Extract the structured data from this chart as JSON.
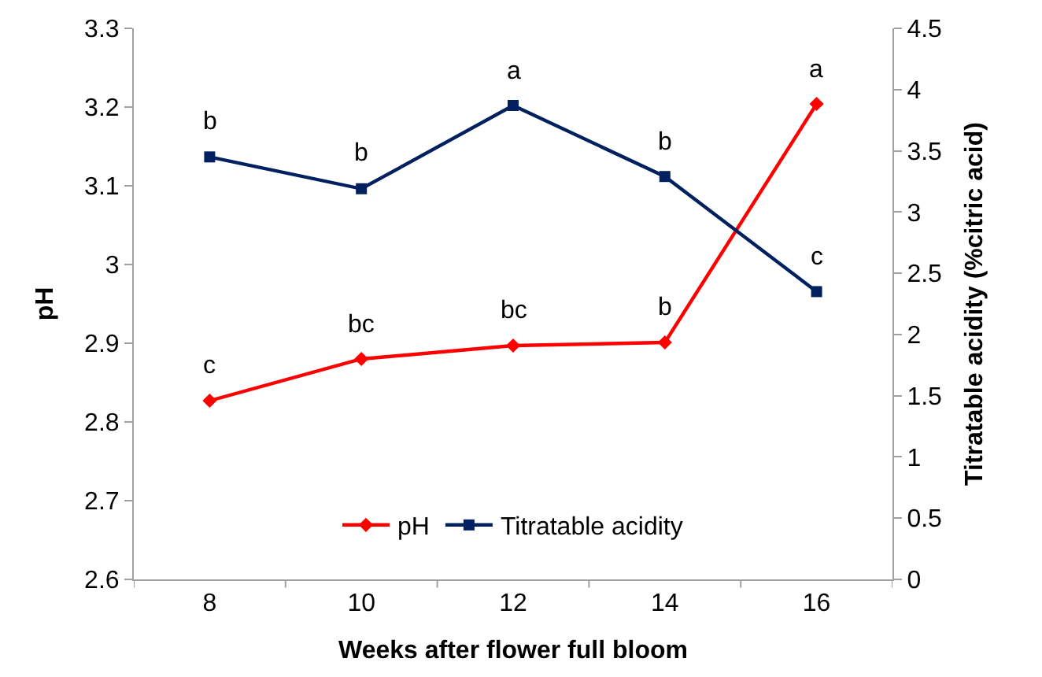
{
  "chart_data": {
    "type": "line",
    "xlabel": "Weeks after flower full bloom",
    "ylabel": "pH",
    "y2label": "Titratable acidity (%citric acid)",
    "categories": [
      "8",
      "10",
      "12",
      "14",
      "16"
    ],
    "series": [
      {
        "name": "pH",
        "color": "#ff0000",
        "marker": "diamond",
        "values": [
          2.827,
          2.88,
          2.897,
          2.901,
          3.204
        ],
        "value_labels": [
          "c",
          "bc",
          "bc",
          "b",
          "a"
        ]
      },
      {
        "name": "Titratable acidity",
        "color": "#002060",
        "marker": "square",
        "axis": "y2",
        "values": [
          3.45,
          3.19,
          3.87,
          3.29,
          2.35
        ],
        "value_labels": [
          "b",
          "b",
          "a",
          "b",
          "c"
        ]
      }
    ],
    "ylim": [
      2.6,
      3.3
    ],
    "yticks": [
      2.6,
      2.7,
      2.8,
      2.9,
      {
        "value": 3.0,
        "label": "3"
      },
      3.1,
      3.2,
      3.3
    ],
    "y2lim": [
      0,
      4.5
    ],
    "y2ticks": [
      0,
      0.5,
      1,
      1.5,
      2,
      2.5,
      3,
      3.5,
      4,
      4.5
    ],
    "legend": "bottom",
    "line_style": "solid"
  }
}
